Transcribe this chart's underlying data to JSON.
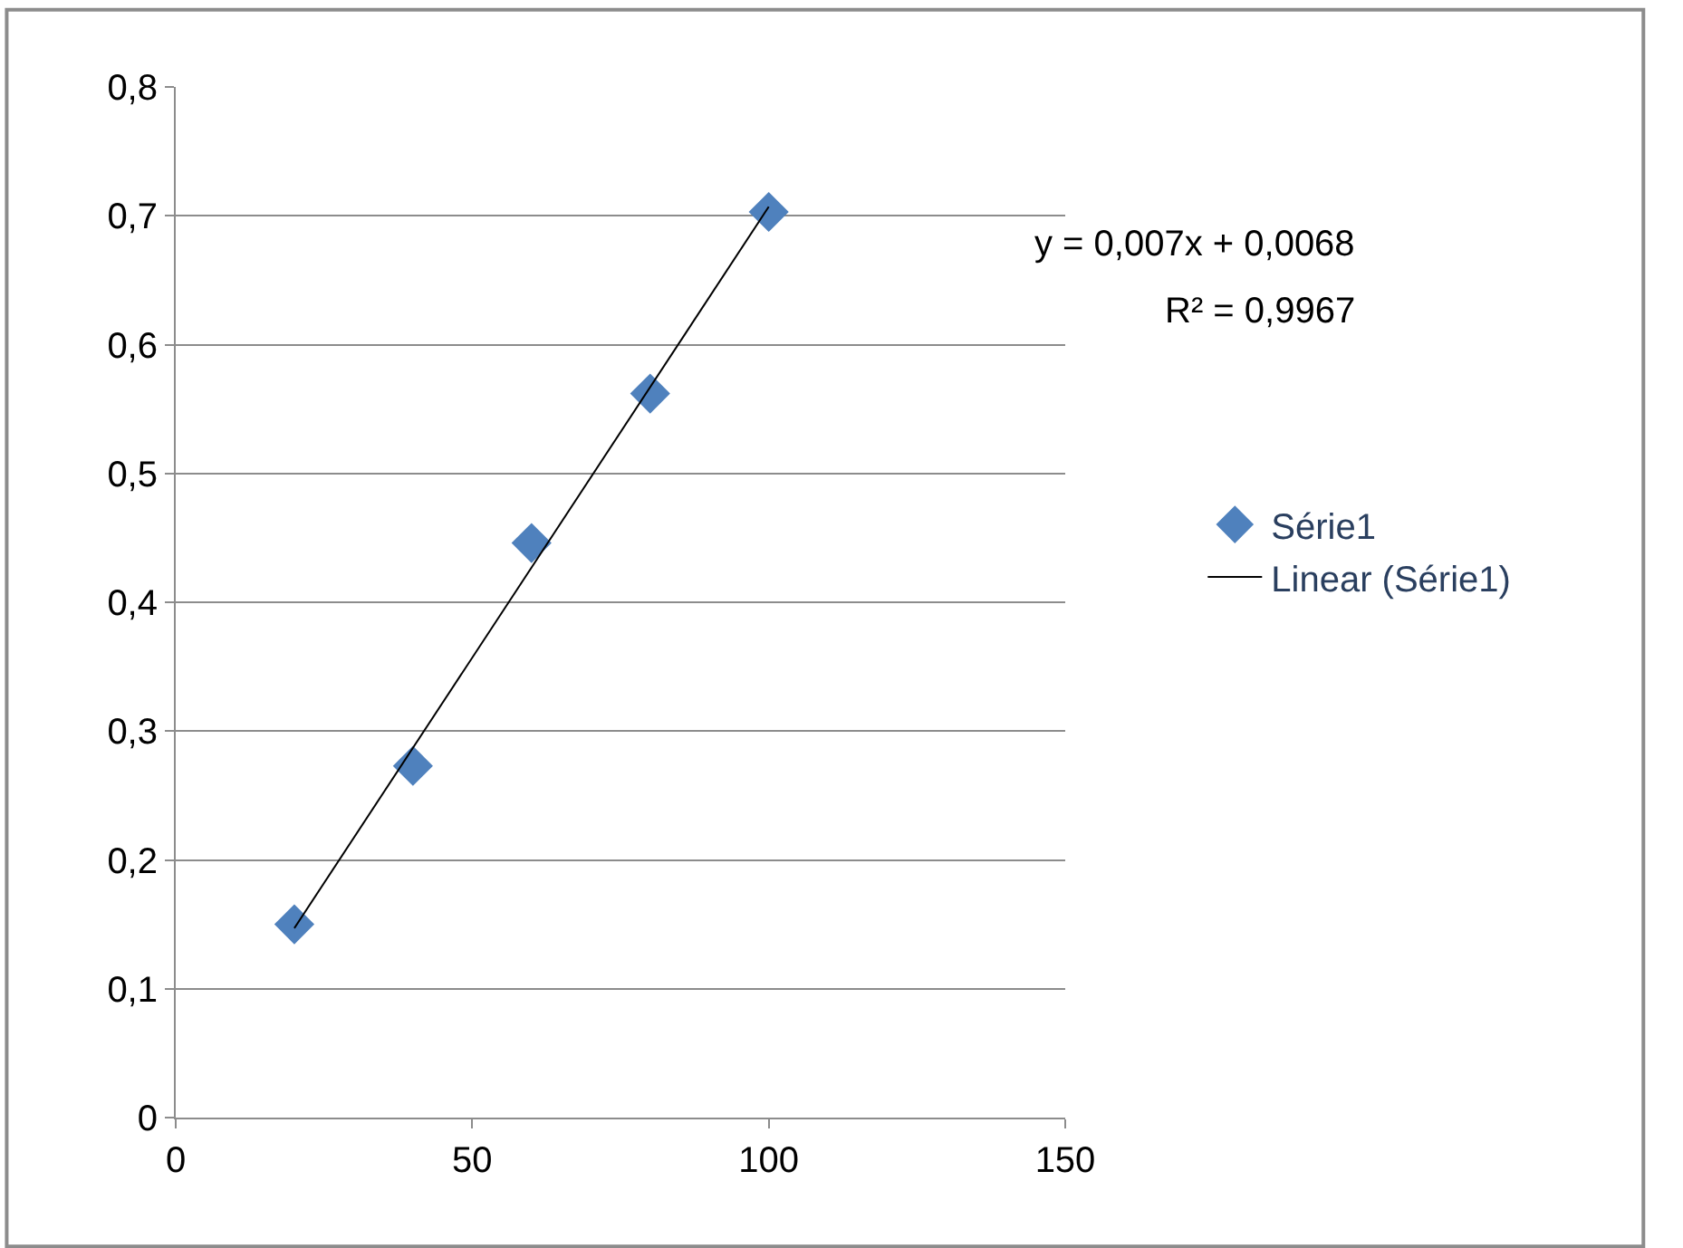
{
  "chart_data": {
    "type": "scatter",
    "x": [
      20,
      40,
      60,
      80,
      100
    ],
    "series": [
      {
        "name": "Série1",
        "color": "#4f81bd",
        "values": [
          0.15,
          0.273,
          0.446,
          0.562,
          0.703
        ],
        "marker": "diamond"
      },
      {
        "name": "Linear (Série1)",
        "type": "line",
        "color": "#000000",
        "x": [
          20,
          100
        ],
        "values": [
          0.147,
          0.707
        ],
        "marker": "none",
        "line_style": "solid"
      }
    ],
    "xlim": [
      0,
      150
    ],
    "xticks": [
      0,
      50,
      100,
      150
    ],
    "ylim": [
      0,
      0.8
    ],
    "yticks": [
      {
        "value": 0,
        "label": "0"
      },
      {
        "value": 0.1,
        "label": "0,1"
      },
      {
        "value": 0.2,
        "label": "0,2"
      },
      {
        "value": 0.3,
        "label": "0,3"
      },
      {
        "value": 0.4,
        "label": "0,4"
      },
      {
        "value": 0.5,
        "label": "0,5"
      },
      {
        "value": 0.6,
        "label": "0,6"
      },
      {
        "value": 0.7,
        "label": "0,7"
      },
      {
        "value": 0.8,
        "label": "0,8"
      }
    ],
    "grid": "y",
    "legend": "right",
    "annotations": [
      "y = 0,007x + 0,0068",
      "R² = 0,9967"
    ]
  }
}
